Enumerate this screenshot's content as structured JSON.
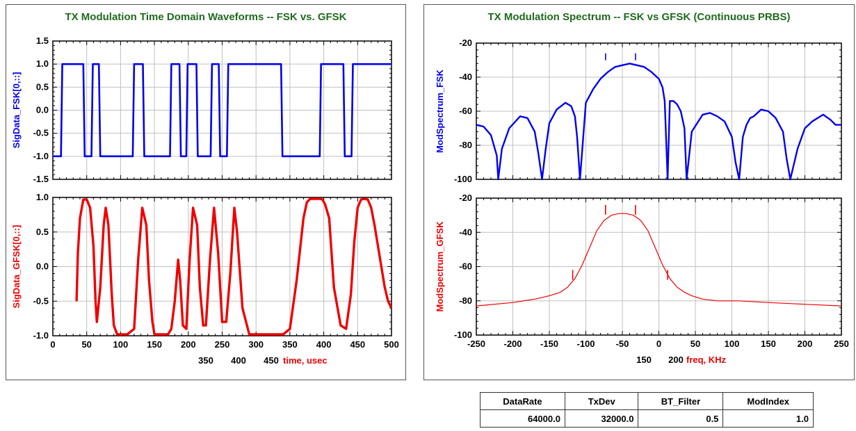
{
  "left_panel": {
    "title": "TX Modulation Time Domain Waveforms -- FSK vs. GFSK"
  },
  "right_panel": {
    "title": "TX Modulation Spectrum -- FSK vs GFSK (Continuous PRBS)"
  },
  "colors": {
    "fsk": "#0000ee",
    "gfsk": "#ee0000",
    "title": "#1f6a1f",
    "grid": "#c0c0c0"
  },
  "chart_data": [
    {
      "type": "line",
      "name": "fsk-time",
      "ylabel": "SigData_FSK[0,::]",
      "ylim": [
        -1.5,
        1.5
      ],
      "yticks": [
        "1.5",
        "1.0",
        "0.5",
        "0.0",
        "-0.5",
        "-1.0",
        "-1.5"
      ],
      "xlim": [
        0,
        500
      ],
      "grid": true,
      "series": [
        {
          "x": [
            0,
            12,
            14,
            45,
            47,
            57,
            59,
            68,
            70,
            118,
            120,
            133,
            135,
            173,
            175,
            187,
            189,
            197,
            199,
            212,
            214,
            233,
            235,
            245,
            247,
            257,
            259,
            337,
            339,
            394,
            396,
            429,
            431,
            441,
            443,
            500
          ],
          "y": [
            -1,
            -1,
            1,
            1,
            -1,
            -1,
            1,
            1,
            -1,
            -1,
            1,
            1,
            -1,
            -1,
            1,
            1,
            -1,
            -1,
            1,
            1,
            -1,
            -1,
            1,
            1,
            -1,
            -1,
            1,
            1,
            -1,
            -1,
            1,
            1,
            -1,
            -1,
            1,
            1
          ]
        }
      ]
    },
    {
      "type": "line",
      "name": "gfsk-time",
      "ylabel": "SigData_GFSK[0,::]",
      "ylim": [
        -1.0,
        1.0
      ],
      "yticks": [
        "1.0",
        "0.5",
        "0.0",
        "-0.5",
        "-1.0"
      ],
      "xlim": [
        0,
        500
      ],
      "xticks": [
        "0",
        "50",
        "100",
        "150",
        "200",
        "250",
        "300",
        "350",
        "400",
        "450",
        "500"
      ],
      "xlabel": "time, usec",
      "xlabel_extra_ticks": [
        "350",
        "400",
        "450"
      ],
      "grid": true,
      "series": [
        {
          "x": [
            35,
            37,
            40,
            45,
            50,
            55,
            60,
            63,
            65,
            70,
            75,
            78,
            82,
            87,
            90,
            95,
            100,
            110,
            120,
            126,
            132,
            138,
            142,
            147,
            150,
            160,
            170,
            175,
            180,
            185,
            188,
            192,
            197,
            202,
            207,
            213,
            217,
            222,
            226,
            232,
            238,
            244,
            250,
            256,
            262,
            268,
            272,
            280,
            290,
            300,
            310,
            320,
            330,
            340,
            350,
            360,
            370,
            375,
            380,
            385,
            390,
            395,
            398,
            402,
            408,
            415,
            425,
            433,
            440,
            445,
            450,
            455,
            460,
            465,
            470,
            475,
            480,
            485,
            490,
            495,
            500
          ],
          "y": [
            -0.5,
            0.2,
            0.7,
            0.97,
            0.97,
            0.85,
            0.3,
            -0.5,
            -0.8,
            -0.3,
            0.6,
            0.85,
            0.6,
            -0.4,
            -0.85,
            -0.98,
            -0.98,
            -0.98,
            -0.9,
            0.1,
            0.85,
            0.6,
            -0.2,
            -0.8,
            -0.98,
            -0.98,
            -0.98,
            -0.9,
            -0.5,
            0.1,
            -0.2,
            -0.85,
            -0.9,
            0.1,
            0.85,
            0.6,
            -0.3,
            -0.85,
            -0.85,
            0.1,
            0.85,
            0.2,
            -0.8,
            -0.8,
            -0.1,
            0.85,
            0.5,
            -0.6,
            -0.98,
            -0.98,
            -0.98,
            -0.98,
            -0.98,
            -0.98,
            -0.9,
            -0.2,
            0.7,
            0.93,
            0.98,
            0.98,
            0.98,
            0.98,
            0.97,
            0.9,
            0.7,
            -0.3,
            -0.85,
            -0.9,
            -0.4,
            0.35,
            0.85,
            0.97,
            0.98,
            0.97,
            0.85,
            0.6,
            0.3,
            0.0,
            -0.3,
            -0.5,
            -0.6
          ]
        }
      ]
    },
    {
      "type": "line",
      "name": "fsk-spectrum",
      "ylabel": "ModSpectrum_FSK",
      "ylim": [
        -100,
        -20
      ],
      "yticks": [
        "-20",
        "-40",
        "-60",
        "-80",
        "-100"
      ],
      "xlim": [
        -250,
        250
      ],
      "grid": true,
      "series": [
        {
          "x": [
            -250,
            -240,
            -230,
            -222,
            -220,
            -215,
            -205,
            -190,
            -180,
            -170,
            -165,
            -160,
            -155,
            -150,
            -140,
            -128,
            -120,
            -115,
            -112,
            -108,
            -100,
            -90,
            -80,
            -70,
            -60,
            -50,
            -40,
            -30,
            -20,
            -10,
            0,
            5,
            8,
            12,
            15,
            20,
            25,
            30,
            35,
            38,
            45,
            60,
            70,
            80,
            90,
            100,
            105,
            110,
            115,
            120,
            125,
            130,
            140,
            150,
            160,
            170,
            175,
            180,
            190,
            200,
            210,
            225,
            235,
            242,
            250
          ],
          "y": [
            -68,
            -69,
            -74,
            -86,
            -100,
            -82,
            -70,
            -63,
            -64,
            -72,
            -85,
            -100,
            -82,
            -67,
            -59,
            -55,
            -57,
            -63,
            -75,
            -100,
            -55,
            -47,
            -41,
            -37,
            -34,
            -33,
            -32,
            -33,
            -34,
            -37,
            -41,
            -46,
            -54,
            -100,
            -54,
            -54,
            -56,
            -60,
            -70,
            -100,
            -72,
            -62,
            -61,
            -63,
            -66,
            -75,
            -90,
            -100,
            -75,
            -68,
            -64,
            -63,
            -59,
            -60,
            -64,
            -72,
            -88,
            -100,
            -82,
            -70,
            -66,
            -62,
            -65,
            -68,
            -68
          ]
        }
      ],
      "spikes": [
        {
          "x": -73,
          "y": -26
        },
        {
          "x": -32,
          "y": -26
        }
      ]
    },
    {
      "type": "line",
      "name": "gfsk-spectrum",
      "ylabel": "ModSpectrum_GFSK",
      "ylim": [
        -100,
        -20
      ],
      "yticks": [
        "-20",
        "-40",
        "-60",
        "-80",
        "-100"
      ],
      "xlim": [
        -250,
        250
      ],
      "xticks": [
        "-250",
        "-200",
        "-150",
        "-100",
        "-50",
        "0",
        "50",
        "100",
        "150",
        "200",
        "250"
      ],
      "xlabel": "freq, KHz",
      "xlabel_extra_ticks": [
        "150",
        "200"
      ],
      "grid": true,
      "series": [
        {
          "x": [
            -250,
            -200,
            -170,
            -150,
            -135,
            -125,
            -115,
            -105,
            -95,
            -85,
            -75,
            -65,
            -55,
            -45,
            -35,
            -25,
            -15,
            -5,
            5,
            15,
            25,
            35,
            45,
            60,
            80,
            110,
            150,
            200,
            250
          ],
          "y": [
            -83,
            -81,
            -79,
            -77,
            -75,
            -72,
            -67,
            -59,
            -49,
            -39,
            -33,
            -30,
            -29,
            -29,
            -30,
            -33,
            -39,
            -49,
            -59,
            -67,
            -72,
            -75,
            -77,
            -79,
            -80,
            -80,
            -81,
            -82,
            -83
          ]
        }
      ],
      "spikes": [
        {
          "x": -73,
          "y": -24
        },
        {
          "x": -32,
          "y": -24
        },
        {
          "x": -118,
          "y": -62
        },
        {
          "x": 12,
          "y": -62
        }
      ]
    }
  ],
  "table": {
    "headers": [
      "DataRate",
      "TxDev",
      "BT_Filter",
      "ModIndex"
    ],
    "row": [
      "64000.0",
      "32000.0",
      "0.5",
      "1.0"
    ]
  }
}
